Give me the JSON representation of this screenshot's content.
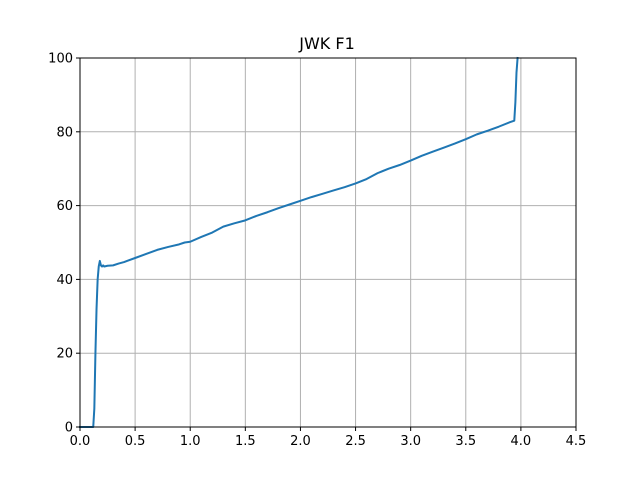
{
  "chart_data": {
    "type": "line",
    "title": "JWK F1",
    "xlabel": "",
    "ylabel": "",
    "xlim": [
      0.0,
      4.5
    ],
    "ylim": [
      0,
      100
    ],
    "grid": true,
    "x_ticks": [
      0.0,
      0.5,
      1.0,
      1.5,
      2.0,
      2.5,
      3.0,
      3.5,
      4.0,
      4.5
    ],
    "x_tick_labels": [
      "0.0",
      "0.5",
      "1.0",
      "1.5",
      "2.0",
      "2.5",
      "3.0",
      "3.5",
      "4.0",
      "4.5"
    ],
    "y_ticks": [
      0,
      20,
      40,
      60,
      80,
      100
    ],
    "y_tick_labels": [
      "0",
      "20",
      "40",
      "60",
      "80",
      "100"
    ],
    "series": [
      {
        "name": "JWK F1",
        "color": "#1f77b4",
        "x": [
          0.0,
          0.12,
          0.13,
          0.14,
          0.15,
          0.16,
          0.17,
          0.18,
          0.19,
          0.2,
          0.21,
          0.22,
          0.25,
          0.3,
          0.35,
          0.4,
          0.5,
          0.6,
          0.7,
          0.8,
          0.9,
          0.95,
          1.0,
          1.1,
          1.2,
          1.3,
          1.4,
          1.5,
          1.6,
          1.7,
          1.8,
          1.9,
          2.0,
          2.1,
          2.2,
          2.3,
          2.4,
          2.5,
          2.6,
          2.7,
          2.8,
          2.9,
          3.0,
          3.1,
          3.2,
          3.3,
          3.4,
          3.5,
          3.6,
          3.7,
          3.8,
          3.9,
          3.94,
          3.95,
          3.96,
          3.97
        ],
        "y": [
          0,
          0,
          5,
          20,
          32,
          40,
          43.5,
          45.0,
          43.8,
          43.5,
          43.8,
          43.5,
          43.7,
          43.8,
          44.3,
          44.7,
          45.8,
          46.9,
          48.0,
          48.8,
          49.5,
          50.0,
          50.2,
          51.5,
          52.7,
          54.3,
          55.2,
          56.0,
          57.2,
          58.2,
          59.3,
          60.3,
          61.3,
          62.3,
          63.2,
          64.1,
          65.0,
          66.0,
          67.2,
          68.8,
          70.0,
          71.0,
          72.2,
          73.5,
          74.6,
          75.7,
          76.8,
          78.0,
          79.3,
          80.3,
          81.4,
          82.6,
          83.0,
          88.0,
          96.0,
          100.0
        ]
      }
    ]
  }
}
